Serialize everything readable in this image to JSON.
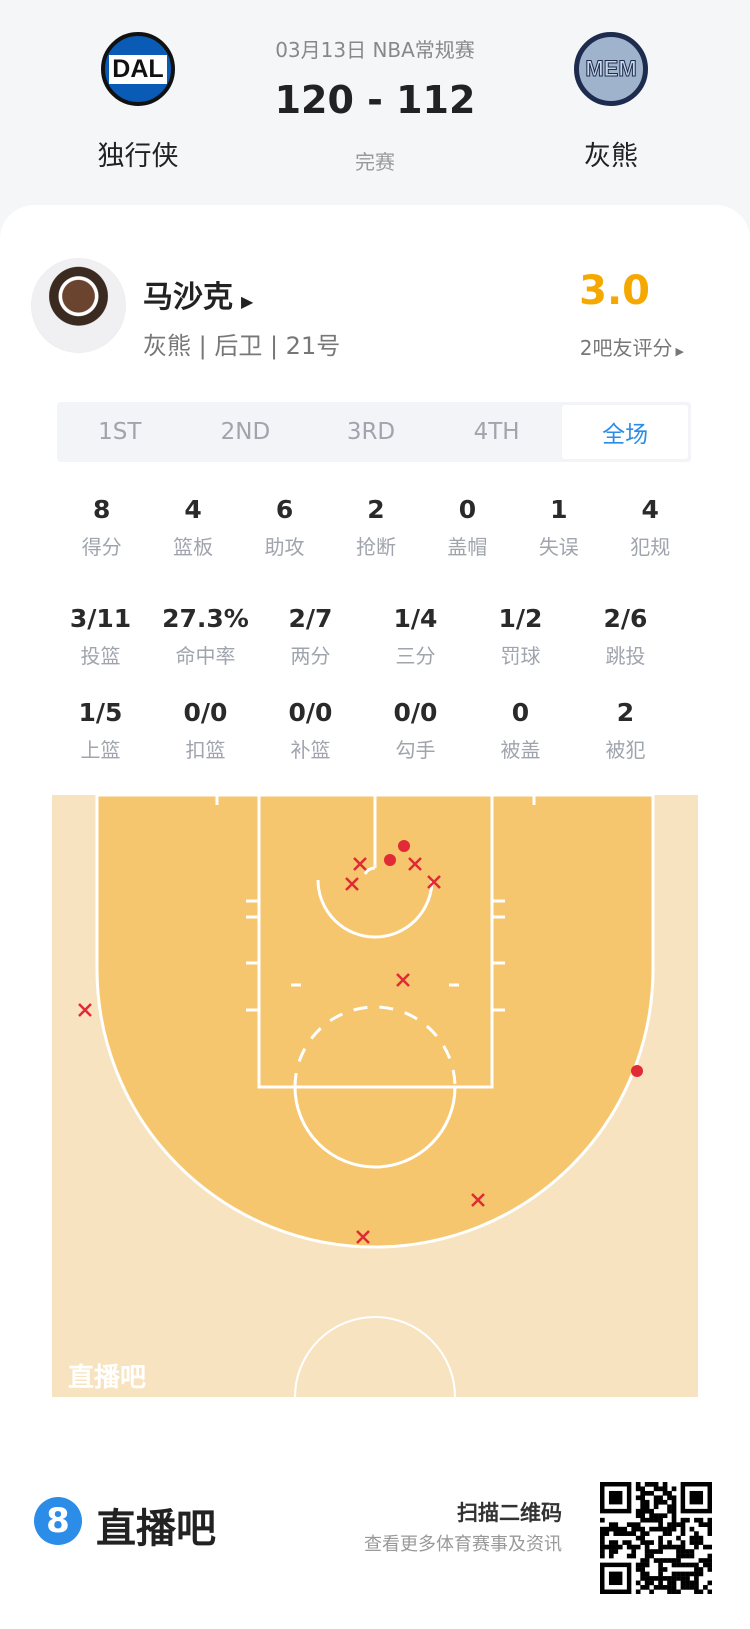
{
  "header": {
    "date_league": "03月13日 NBA常规赛",
    "score": "120 - 112",
    "status": "完赛",
    "home": {
      "abbr": "DAL",
      "name": "独行侠",
      "color": "#0064b1"
    },
    "away": {
      "abbr": "MEM",
      "name": "灰熊",
      "color": "#1d2b4f"
    }
  },
  "player": {
    "name": "马沙克",
    "info": "灰熊 | 后卫 | 21号",
    "rating": "3.0",
    "rating_count": "2吧友评分",
    "rating_color": "#f5a800"
  },
  "tabs": [
    {
      "label": "1ST"
    },
    {
      "label": "2ND"
    },
    {
      "label": "3RD"
    },
    {
      "label": "4TH"
    },
    {
      "label": "全场",
      "active": true
    }
  ],
  "stats_row1": [
    {
      "v": "8",
      "l": "得分"
    },
    {
      "v": "4",
      "l": "篮板"
    },
    {
      "v": "6",
      "l": "助攻"
    },
    {
      "v": "2",
      "l": "抢断"
    },
    {
      "v": "0",
      "l": "盖帽"
    },
    {
      "v": "1",
      "l": "失误"
    },
    {
      "v": "4",
      "l": "犯规"
    }
  ],
  "stats_row2": [
    {
      "v": "3/11",
      "l": "投篮"
    },
    {
      "v": "27.3%",
      "l": "命中率"
    },
    {
      "v": "2/7",
      "l": "两分"
    },
    {
      "v": "1/4",
      "l": "三分"
    },
    {
      "v": "1/2",
      "l": "罚球"
    },
    {
      "v": "2/6",
      "l": "跳投"
    }
  ],
  "stats_row3": [
    {
      "v": "1/5",
      "l": "上篮"
    },
    {
      "v": "0/0",
      "l": "扣篮"
    },
    {
      "v": "0/0",
      "l": "补篮"
    },
    {
      "v": "0/0",
      "l": "勾手"
    },
    {
      "v": "0",
      "l": "被盖"
    },
    {
      "v": "2",
      "l": "被犯"
    }
  ],
  "shot_chart": {
    "watermark": "直播吧",
    "make_color": "#e02a35",
    "miss_color": "#e02a35"
  },
  "footer": {
    "brand": "直播吧",
    "brand_badge": "8",
    "qr_title": "扫描二维码",
    "qr_sub": "查看更多体育赛事及资讯",
    "brand_color": "#2b8de8"
  }
}
